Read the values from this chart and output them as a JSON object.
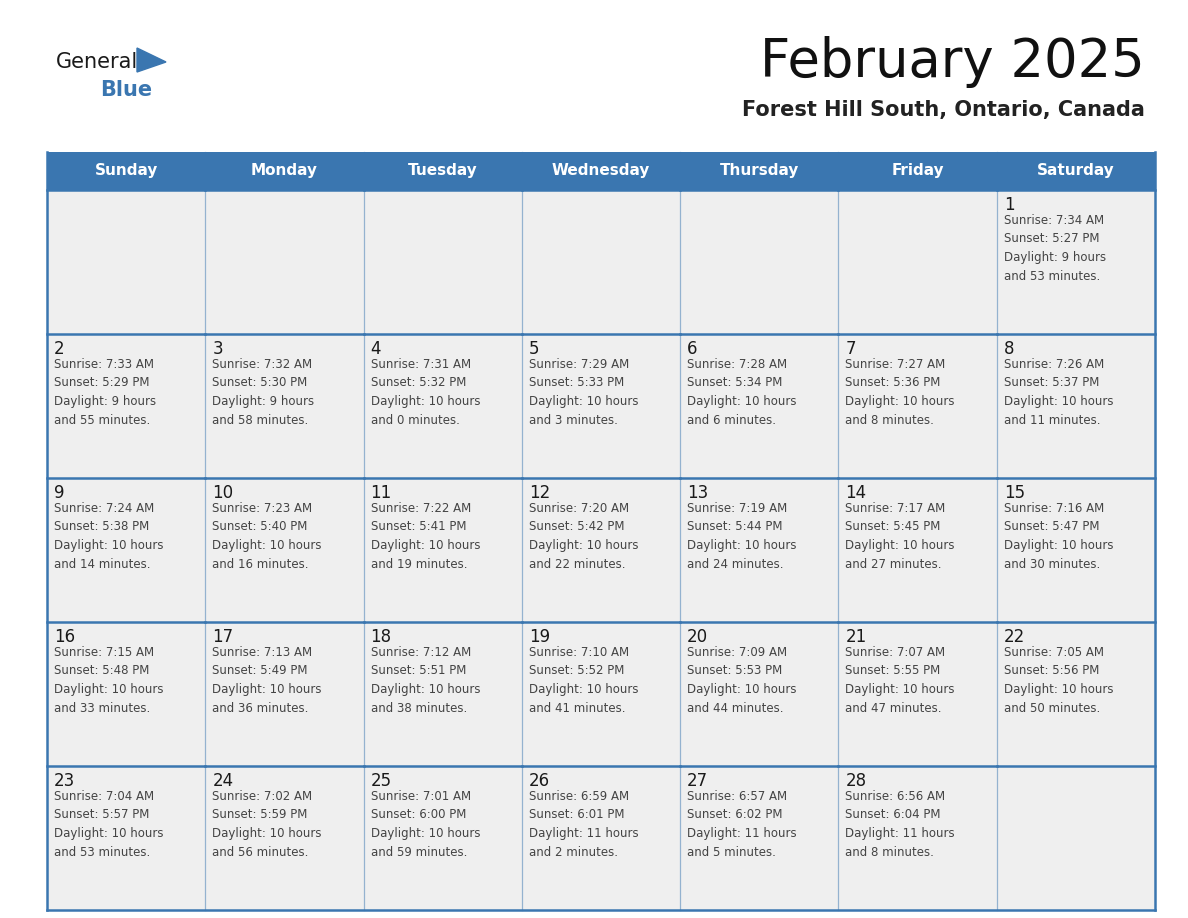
{
  "title": "February 2025",
  "subtitle": "Forest Hill South, Ontario, Canada",
  "header_color": "#3a76b0",
  "header_text_color": "#ffffff",
  "cell_bg_color": "#efefef",
  "day_num_color": "#1a1a1a",
  "text_color": "#444444",
  "border_color": "#3a76b0",
  "days_of_week": [
    "Sunday",
    "Monday",
    "Tuesday",
    "Wednesday",
    "Thursday",
    "Friday",
    "Saturday"
  ],
  "weeks": [
    [
      {
        "day": null,
        "info": null
      },
      {
        "day": null,
        "info": null
      },
      {
        "day": null,
        "info": null
      },
      {
        "day": null,
        "info": null
      },
      {
        "day": null,
        "info": null
      },
      {
        "day": null,
        "info": null
      },
      {
        "day": "1",
        "info": "Sunrise: 7:34 AM\nSunset: 5:27 PM\nDaylight: 9 hours\nand 53 minutes."
      }
    ],
    [
      {
        "day": "2",
        "info": "Sunrise: 7:33 AM\nSunset: 5:29 PM\nDaylight: 9 hours\nand 55 minutes."
      },
      {
        "day": "3",
        "info": "Sunrise: 7:32 AM\nSunset: 5:30 PM\nDaylight: 9 hours\nand 58 minutes."
      },
      {
        "day": "4",
        "info": "Sunrise: 7:31 AM\nSunset: 5:32 PM\nDaylight: 10 hours\nand 0 minutes."
      },
      {
        "day": "5",
        "info": "Sunrise: 7:29 AM\nSunset: 5:33 PM\nDaylight: 10 hours\nand 3 minutes."
      },
      {
        "day": "6",
        "info": "Sunrise: 7:28 AM\nSunset: 5:34 PM\nDaylight: 10 hours\nand 6 minutes."
      },
      {
        "day": "7",
        "info": "Sunrise: 7:27 AM\nSunset: 5:36 PM\nDaylight: 10 hours\nand 8 minutes."
      },
      {
        "day": "8",
        "info": "Sunrise: 7:26 AM\nSunset: 5:37 PM\nDaylight: 10 hours\nand 11 minutes."
      }
    ],
    [
      {
        "day": "9",
        "info": "Sunrise: 7:24 AM\nSunset: 5:38 PM\nDaylight: 10 hours\nand 14 minutes."
      },
      {
        "day": "10",
        "info": "Sunrise: 7:23 AM\nSunset: 5:40 PM\nDaylight: 10 hours\nand 16 minutes."
      },
      {
        "day": "11",
        "info": "Sunrise: 7:22 AM\nSunset: 5:41 PM\nDaylight: 10 hours\nand 19 minutes."
      },
      {
        "day": "12",
        "info": "Sunrise: 7:20 AM\nSunset: 5:42 PM\nDaylight: 10 hours\nand 22 minutes."
      },
      {
        "day": "13",
        "info": "Sunrise: 7:19 AM\nSunset: 5:44 PM\nDaylight: 10 hours\nand 24 minutes."
      },
      {
        "day": "14",
        "info": "Sunrise: 7:17 AM\nSunset: 5:45 PM\nDaylight: 10 hours\nand 27 minutes."
      },
      {
        "day": "15",
        "info": "Sunrise: 7:16 AM\nSunset: 5:47 PM\nDaylight: 10 hours\nand 30 minutes."
      }
    ],
    [
      {
        "day": "16",
        "info": "Sunrise: 7:15 AM\nSunset: 5:48 PM\nDaylight: 10 hours\nand 33 minutes."
      },
      {
        "day": "17",
        "info": "Sunrise: 7:13 AM\nSunset: 5:49 PM\nDaylight: 10 hours\nand 36 minutes."
      },
      {
        "day": "18",
        "info": "Sunrise: 7:12 AM\nSunset: 5:51 PM\nDaylight: 10 hours\nand 38 minutes."
      },
      {
        "day": "19",
        "info": "Sunrise: 7:10 AM\nSunset: 5:52 PM\nDaylight: 10 hours\nand 41 minutes."
      },
      {
        "day": "20",
        "info": "Sunrise: 7:09 AM\nSunset: 5:53 PM\nDaylight: 10 hours\nand 44 minutes."
      },
      {
        "day": "21",
        "info": "Sunrise: 7:07 AM\nSunset: 5:55 PM\nDaylight: 10 hours\nand 47 minutes."
      },
      {
        "day": "22",
        "info": "Sunrise: 7:05 AM\nSunset: 5:56 PM\nDaylight: 10 hours\nand 50 minutes."
      }
    ],
    [
      {
        "day": "23",
        "info": "Sunrise: 7:04 AM\nSunset: 5:57 PM\nDaylight: 10 hours\nand 53 minutes."
      },
      {
        "day": "24",
        "info": "Sunrise: 7:02 AM\nSunset: 5:59 PM\nDaylight: 10 hours\nand 56 minutes."
      },
      {
        "day": "25",
        "info": "Sunrise: 7:01 AM\nSunset: 6:00 PM\nDaylight: 10 hours\nand 59 minutes."
      },
      {
        "day": "26",
        "info": "Sunrise: 6:59 AM\nSunset: 6:01 PM\nDaylight: 11 hours\nand 2 minutes."
      },
      {
        "day": "27",
        "info": "Sunrise: 6:57 AM\nSunset: 6:02 PM\nDaylight: 11 hours\nand 5 minutes."
      },
      {
        "day": "28",
        "info": "Sunrise: 6:56 AM\nSunset: 6:04 PM\nDaylight: 11 hours\nand 8 minutes."
      },
      {
        "day": null,
        "info": null
      }
    ]
  ],
  "logo_text1": "General",
  "logo_text2": "Blue",
  "logo_color1": "#1a1a1a",
  "logo_color2": "#3a76b0",
  "logo_triangle_color": "#3a76b0"
}
